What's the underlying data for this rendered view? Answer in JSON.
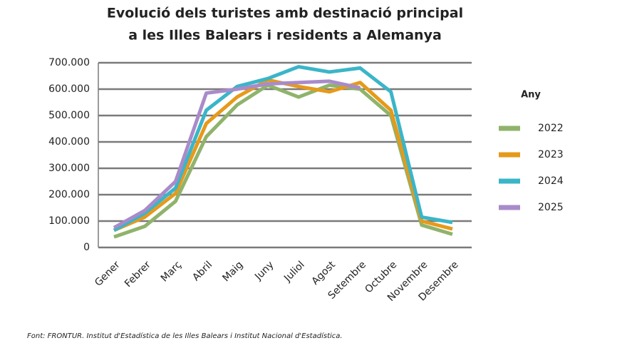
{
  "chart_data": {
    "type": "line",
    "title": [
      "Evolució dels turistes amb destinació principal",
      "a les Illes Balears i residents a Alemanya"
    ],
    "categories": [
      "Gener",
      "Febrer",
      "Març",
      "Abril",
      "Maig",
      "Juny",
      "Juliol",
      "Agost",
      "Setembre",
      "Octubre",
      "Novembre",
      "Desembre"
    ],
    "series": [
      {
        "name": "2022",
        "color": "#8fb36b",
        "values": [
          40000,
          80000,
          175000,
          420000,
          540000,
          615000,
          570000,
          615000,
          600000,
          500000,
          85000,
          50000
        ]
      },
      {
        "name": "2023",
        "color": "#e69a1a",
        "values": [
          65000,
          115000,
          205000,
          470000,
          570000,
          635000,
          610000,
          590000,
          625000,
          520000,
          100000,
          70000
        ]
      },
      {
        "name": "2024",
        "color": "#3bb5c8",
        "values": [
          65000,
          130000,
          225000,
          520000,
          610000,
          640000,
          685000,
          665000,
          680000,
          590000,
          115000,
          95000
        ]
      },
      {
        "name": "2025",
        "color": "#a98bc9",
        "values": [
          75000,
          140000,
          250000,
          585000,
          600000,
          620000,
          625000,
          630000,
          605000,
          null,
          null,
          null
        ]
      }
    ],
    "ylim": [
      0,
      700000
    ],
    "yticks": [
      0,
      {
        "value": 100000,
        "label": "100.000"
      },
      {
        "value": 200000,
        "label": "200.000"
      },
      {
        "value": 300000,
        "label": "300.000"
      },
      {
        "value": 400000,
        "label": "400.000"
      },
      {
        "value": 500000,
        "label": "500.000"
      },
      {
        "value": 600000,
        "label": "600.000"
      },
      {
        "value": 700000,
        "label": "700.000"
      }
    ],
    "grid": true,
    "legend_title": "Any",
    "legend_position": "right",
    "source": "Font: FRONTUR. Institut d'Estadística de les Illes Balears i Institut Nacional d'Estadística."
  }
}
